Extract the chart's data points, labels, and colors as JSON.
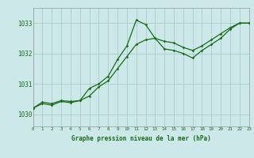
{
  "title": "Graphe pression niveau de la mer (hPa)",
  "bg_color": "#cce8e8",
  "grid_color": "#aacccc",
  "line_color": "#1a6b1a",
  "xmin": 0,
  "xmax": 23,
  "ymin": 1029.6,
  "ymax": 1033.5,
  "yticks": [
    1030,
    1031,
    1032,
    1033
  ],
  "xticks": [
    0,
    1,
    2,
    3,
    4,
    5,
    6,
    7,
    8,
    9,
    10,
    11,
    12,
    13,
    14,
    15,
    16,
    17,
    18,
    19,
    20,
    21,
    22,
    23
  ],
  "series1_x": [
    0,
    1,
    2,
    3,
    4,
    5,
    6,
    7,
    8,
    9,
    10,
    11,
    12,
    13,
    14,
    15,
    16,
    17,
    18,
    19,
    20,
    21,
    22,
    23
  ],
  "series1_y": [
    1030.2,
    1030.4,
    1030.35,
    1030.45,
    1030.42,
    1030.45,
    1030.85,
    1031.0,
    1031.25,
    1031.8,
    1032.25,
    1033.1,
    1032.95,
    1032.5,
    1032.15,
    1032.1,
    1032.0,
    1031.85,
    1032.1,
    1032.3,
    1032.5,
    1032.8,
    1033.0,
    1033.0
  ],
  "series2_x": [
    0,
    1,
    2,
    3,
    4,
    5,
    6,
    7,
    8,
    9,
    10,
    11,
    12,
    13,
    14,
    15,
    16,
    17,
    18,
    19,
    20,
    21,
    22,
    23
  ],
  "series2_y": [
    1030.2,
    1030.35,
    1030.3,
    1030.42,
    1030.38,
    1030.45,
    1030.6,
    1030.9,
    1031.1,
    1031.5,
    1031.9,
    1032.3,
    1032.45,
    1032.5,
    1032.4,
    1032.35,
    1032.2,
    1032.1,
    1032.25,
    1032.45,
    1032.65,
    1032.85,
    1033.0,
    1033.0
  ]
}
